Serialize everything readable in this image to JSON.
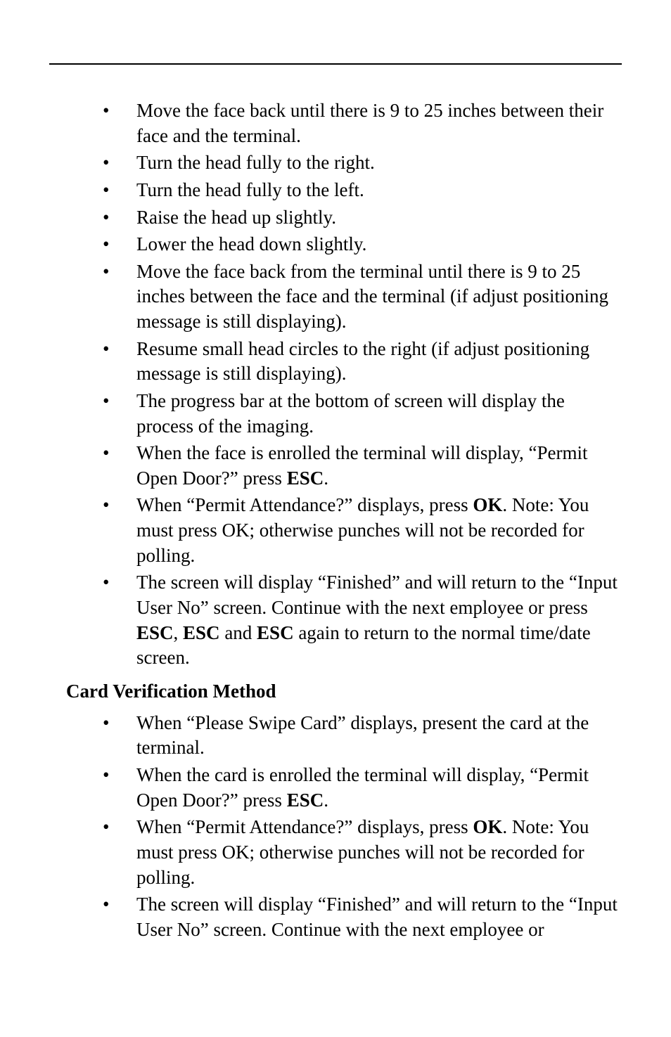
{
  "section1": {
    "items": [
      "Move the face back until there is 9 to 25 inches between their face and the terminal.",
      "Turn the head fully to the right.",
      "Turn the head fully to the left.",
      "Raise the head up slightly.",
      "Lower the head down slightly.",
      "Move the face back from the terminal until there is 9 to 25 inches between the face and the terminal (if adjust positioning message is still displaying).",
      "Resume small head circles to the right (if adjust positioning message is still displaying).",
      "The progress bar at the bottom of screen will display the process of the imaging.",
      {
        "runs": [
          {
            "t": "When the face is enrolled the terminal will display, “Permit Open Door?” press "
          },
          {
            "t": "ESC",
            "b": true
          },
          {
            "t": "."
          }
        ]
      },
      {
        "runs": [
          {
            "t": "When “Permit Attendance?” displays, press "
          },
          {
            "t": "OK",
            "b": true
          },
          {
            "t": ". Note: You must press OK; otherwise punches will not be recorded for polling."
          }
        ]
      },
      {
        "runs": [
          {
            "t": "The screen will display “Finished” and will return to the “Input User No” screen. Continue with the next employee or press "
          },
          {
            "t": "ESC",
            "b": true
          },
          {
            "t": ", "
          },
          {
            "t": "ESC",
            "b": true
          },
          {
            "t": " and "
          },
          {
            "t": "ESC",
            "b": true
          },
          {
            "t": " again to return to the normal time/date screen."
          }
        ]
      }
    ]
  },
  "heading": "Card Verification Method",
  "section2": {
    "items": [
      "When “Please Swipe Card” displays, present the card at the terminal.",
      {
        "runs": [
          {
            "t": "When the card is enrolled the terminal will display, “Permit Open Door?” press "
          },
          {
            "t": "ESC",
            "b": true
          },
          {
            "t": "."
          }
        ]
      },
      {
        "runs": [
          {
            "t": "When “Permit Attendance?” displays, press "
          },
          {
            "t": "OK",
            "b": true
          },
          {
            "t": ". Note: You must press OK; otherwise punches will not be recorded for polling."
          }
        ]
      },
      "The screen will display “Finished” and will return to the “Input User No” screen. Continue with the next employee or"
    ]
  }
}
